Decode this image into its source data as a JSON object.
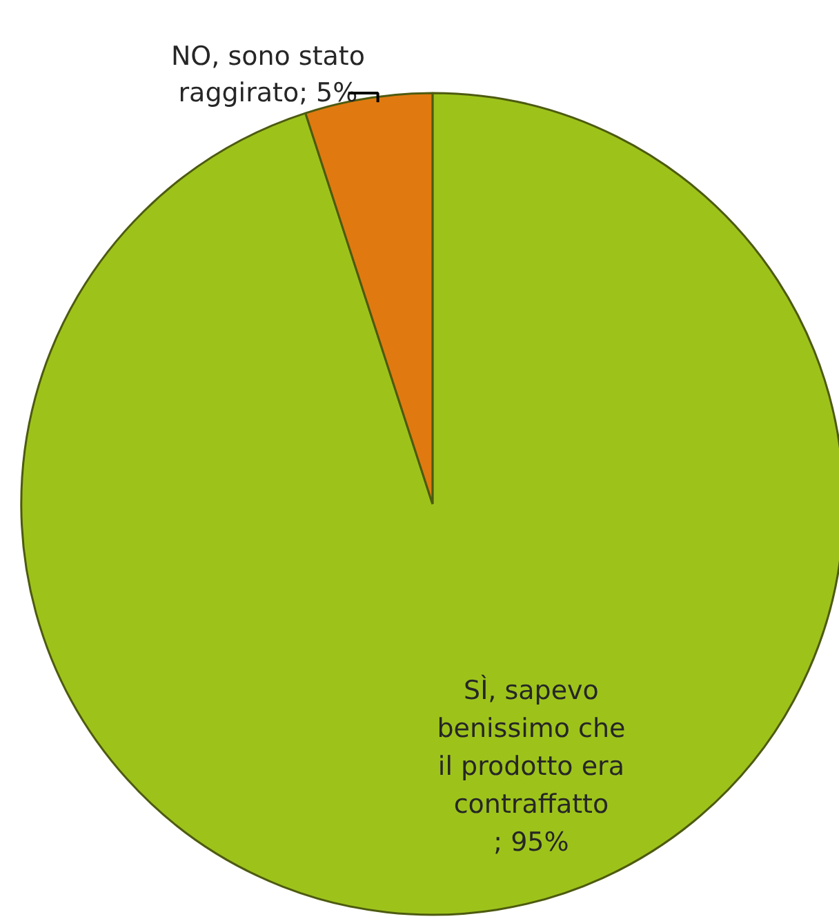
{
  "chart_data": {
    "type": "pie",
    "categories": [
      "SÌ, sapevo benissimo che il prodotto era contraffatto",
      "NO, sono stato raggirato"
    ],
    "values": [
      95,
      5
    ],
    "colors": [
      "#9dc31b",
      "#e07a10"
    ],
    "value_labels": [
      "; 95%",
      "; 5%"
    ]
  }
}
